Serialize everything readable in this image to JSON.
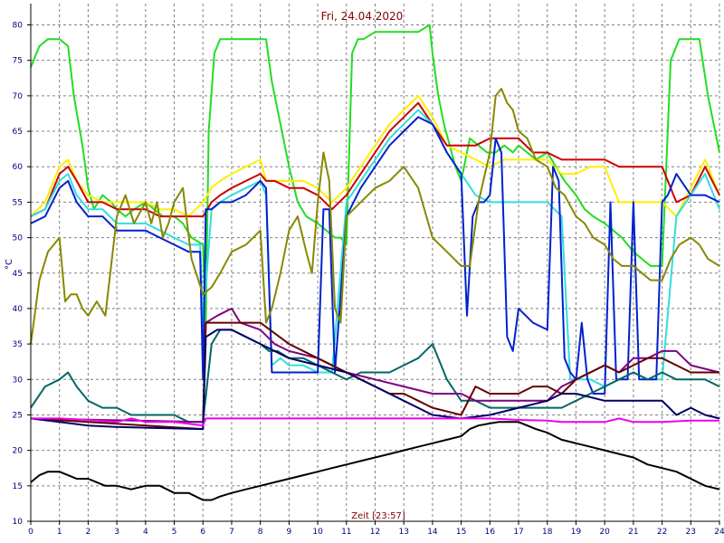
{
  "chart_data": {
    "type": "line",
    "title": "Fri, 24.04.2020",
    "xlabel": "Zeit [23:57]",
    "ylabel": "°C",
    "xlim": [
      0,
      24
    ],
    "ylim": [
      10,
      83
    ],
    "xticks": [
      0,
      1,
      2,
      3,
      4,
      5,
      6,
      7,
      8,
      9,
      10,
      11,
      12,
      13,
      14,
      15,
      16,
      17,
      18,
      19,
      20,
      21,
      22,
      23,
      24
    ],
    "yticks": [
      10,
      15,
      20,
      25,
      30,
      35,
      40,
      45,
      50,
      55,
      60,
      65,
      70,
      75,
      80
    ],
    "grid": true,
    "legend": "none",
    "colors": {
      "grid": "#808080",
      "axis": "#000000",
      "tick_text": "#000080",
      "title_text": "#800000"
    },
    "series": [
      {
        "color": "#22dd22",
        "x": [
          0,
          0.3,
          0.6,
          1,
          1.3,
          1.5,
          1.8,
          2,
          2.2,
          2.5,
          2.8,
          3,
          3.3,
          3.6,
          4,
          4.3,
          4.6,
          5,
          5.3,
          5.6,
          6,
          6.1,
          6.2,
          6.4,
          6.6,
          7,
          7.5,
          8,
          8.2,
          8.4,
          8.7,
          9,
          9.3,
          9.6,
          10,
          10.3,
          10.6,
          10.8,
          11,
          11.2,
          11.4,
          11.6,
          12,
          12.5,
          13,
          13.5,
          13.9,
          14,
          14.2,
          14.4,
          14.6,
          14.8,
          15,
          15.3,
          15.6,
          15.9,
          16.2,
          16.5,
          16.8,
          17,
          17.3,
          17.6,
          18,
          18.3,
          18.6,
          19,
          19.3,
          19.6,
          20,
          20.3,
          20.6,
          21,
          21.3,
          21.6,
          22,
          22.3,
          22.6,
          23,
          23.3,
          23.6,
          24
        ],
        "y": [
          74,
          77,
          78,
          78,
          77,
          70,
          63,
          57,
          54,
          56,
          55,
          54,
          53,
          54,
          55,
          54,
          53,
          53,
          52,
          50,
          49,
          38,
          65,
          76,
          78,
          78,
          78,
          78,
          78,
          72,
          66,
          60,
          55,
          53,
          52,
          51,
          50,
          50,
          49,
          76,
          78,
          78,
          79,
          79,
          79,
          79,
          80,
          76,
          70,
          66,
          63,
          60,
          58,
          64,
          63,
          62,
          62,
          63,
          62,
          63,
          62,
          61,
          62,
          60,
          58,
          56,
          54,
          53,
          52,
          51,
          50,
          48,
          47,
          46,
          46,
          75,
          78,
          78,
          78,
          70,
          62
        ]
      },
      {
        "color": "#ffee00",
        "x": [
          0,
          0.5,
          1,
          1.3,
          1.6,
          2,
          2.5,
          3,
          3.5,
          4,
          4.5,
          5,
          5.5,
          6,
          6.3,
          6.6,
          7,
          7.5,
          8,
          8.2,
          8.5,
          9,
          9.5,
          10,
          10.5,
          11,
          11.5,
          12,
          12.5,
          13,
          13.5,
          14,
          14.5,
          15,
          15.5,
          16,
          16.5,
          17,
          17.5,
          18,
          18.5,
          19,
          19.5,
          20,
          20.5,
          21,
          21.5,
          22,
          22.5,
          23,
          23.5,
          24
        ],
        "y": [
          53,
          55,
          60,
          61,
          58,
          56,
          55,
          55,
          55,
          55,
          54,
          54,
          53,
          55,
          57,
          58,
          59,
          60,
          61,
          58,
          58,
          58,
          58,
          57,
          55,
          57,
          60,
          63,
          66,
          68,
          70,
          67,
          63,
          62,
          61,
          60,
          61,
          61,
          61,
          61,
          59,
          59,
          60,
          60,
          55,
          55,
          55,
          55,
          53,
          57,
          61,
          56
        ]
      },
      {
        "color": "#cc0000",
        "x": [
          0,
          0.5,
          1,
          1.3,
          1.6,
          2,
          2.5,
          3,
          3.5,
          4,
          4.5,
          5,
          5.5,
          6,
          6.3,
          6.6,
          7,
          7.5,
          8,
          8.2,
          8.5,
          9,
          9.5,
          10,
          10.5,
          11,
          11.5,
          12,
          12.5,
          13,
          13.5,
          14,
          14.5,
          15,
          15.5,
          16,
          16.5,
          17,
          17.5,
          18,
          18.5,
          19,
          19.5,
          20,
          20.5,
          21,
          21.5,
          22,
          22.5,
          23,
          23.5,
          24
        ],
        "y": [
          53,
          54,
          59,
          60,
          58,
          55,
          55,
          54,
          54,
          54,
          53,
          53,
          53,
          53,
          55,
          56,
          57,
          58,
          59,
          58,
          58,
          57,
          57,
          56,
          54,
          56,
          59,
          62,
          65,
          67,
          69,
          66,
          63,
          63,
          63,
          64,
          64,
          64,
          62,
          62,
          61,
          61,
          61,
          61,
          60,
          60,
          60,
          60,
          55,
          56,
          60,
          56
        ]
      },
      {
        "color": "#33dddd",
        "x": [
          0,
          0.5,
          1,
          1.3,
          1.6,
          2,
          2.5,
          3,
          3.5,
          4,
          4.5,
          5,
          5.5,
          5.9,
          6,
          6.3,
          6.6,
          7,
          7.5,
          8,
          8.2,
          8.4,
          8.7,
          9,
          9.5,
          10,
          10.5,
          11,
          11.5,
          12,
          12.5,
          13,
          13.5,
          14,
          14.5,
          15,
          15.5,
          16,
          16.5,
          17,
          17.5,
          18,
          18.5,
          18.8,
          19,
          19.5,
          20,
          20.5,
          21,
          21.5,
          22,
          22.5,
          23,
          23.5,
          24
        ],
        "y": [
          53,
          54,
          58,
          59,
          56,
          54,
          54,
          52,
          52,
          52,
          51,
          50,
          49,
          49,
          38,
          54,
          55,
          56,
          57,
          58,
          56,
          32,
          33,
          32,
          32,
          31,
          31,
          55,
          58,
          61,
          64,
          66,
          68,
          66,
          62,
          59,
          56,
          55,
          55,
          55,
          55,
          55,
          53,
          30,
          30,
          30,
          29,
          30,
          31,
          30,
          30,
          53,
          56,
          59,
          54
        ]
      },
      {
        "color": "#0022cc",
        "x": [
          0,
          0.5,
          1,
          1.3,
          1.6,
          2,
          2.5,
          3,
          3.5,
          4,
          4.5,
          5,
          5.5,
          5.9,
          6,
          6.1,
          6.3,
          6.6,
          7,
          7.5,
          8,
          8.2,
          8.4,
          8.7,
          9,
          9.5,
          10,
          10.2,
          10.4,
          10.6,
          11,
          11.5,
          12,
          12.5,
          13,
          13.5,
          14,
          14.5,
          15,
          15.2,
          15.4,
          15.6,
          15.8,
          16,
          16.2,
          16.4,
          16.6,
          16.8,
          17,
          17.5,
          18,
          18.2,
          18.4,
          18.6,
          18.8,
          19,
          19.2,
          19.4,
          19.6,
          19.8,
          20,
          20.2,
          20.4,
          20.6,
          20.8,
          21,
          21.2,
          21.4,
          21.6,
          21.8,
          22,
          22.2,
          22.5,
          23,
          23.5,
          24
        ],
        "y": [
          52,
          53,
          57,
          58,
          55,
          53,
          53,
          51,
          51,
          51,
          50,
          49,
          48,
          48,
          30,
          54,
          54,
          55,
          55,
          56,
          58,
          57,
          31,
          31,
          31,
          31,
          31,
          54,
          54,
          31,
          53,
          57,
          60,
          63,
          65,
          67,
          66,
          62,
          59,
          39,
          53,
          55,
          55,
          56,
          64,
          62,
          36,
          34,
          40,
          38,
          37,
          60,
          58,
          33,
          31,
          30,
          38,
          30,
          28,
          28,
          28,
          55,
          30,
          30,
          30,
          55,
          30,
          30,
          30,
          30,
          55,
          56,
          59,
          56,
          56,
          55
        ]
      },
      {
        "color": "#888800",
        "x": [
          0,
          0.3,
          0.6,
          1,
          1.2,
          1.4,
          1.6,
          1.8,
          2,
          2.3,
          2.6,
          3,
          3.3,
          3.6,
          4,
          4.2,
          4.4,
          4.6,
          4.8,
          5,
          5.3,
          5.6,
          6,
          6.3,
          6.6,
          7,
          7.5,
          8,
          8.2,
          8.4,
          8.7,
          9,
          9.3,
          9.6,
          9.8,
          10,
          10.2,
          10.4,
          10.6,
          10.8,
          11,
          11.5,
          12,
          12.5,
          13,
          13.5,
          14,
          14.5,
          15,
          15.3,
          15.6,
          16,
          16.2,
          16.4,
          16.6,
          16.8,
          17,
          17.3,
          17.6,
          18,
          18.3,
          18.6,
          19,
          19.3,
          19.6,
          20,
          20.3,
          20.6,
          21,
          21.3,
          21.6,
          22,
          22.3,
          22.6,
          23,
          23.3,
          23.6,
          24
        ],
        "y": [
          35,
          44,
          48,
          50,
          41,
          42,
          42,
          40,
          39,
          41,
          39,
          53,
          56,
          52,
          55,
          52,
          55,
          50,
          52,
          55,
          57,
          47,
          42,
          43,
          45,
          48,
          49,
          51,
          38,
          40,
          45,
          51,
          53,
          48,
          45,
          55,
          62,
          58,
          40,
          38,
          53,
          55,
          57,
          58,
          60,
          57,
          50,
          48,
          46,
          46,
          55,
          62,
          70,
          71,
          69,
          68,
          65,
          64,
          61,
          60,
          57,
          56,
          53,
          52,
          50,
          49,
          47,
          46,
          46,
          45,
          44,
          44,
          47,
          49,
          50,
          49,
          47,
          46
        ]
      },
      {
        "color": "#006666",
        "x": [
          0,
          0.5,
          1,
          1.3,
          1.6,
          2,
          2.5,
          3,
          3.5,
          4,
          4.5,
          5,
          5.5,
          6,
          6.3,
          6.6,
          7,
          7.5,
          8,
          8.3,
          8.6,
          9,
          9.5,
          10,
          10.5,
          11,
          11.5,
          12,
          12.5,
          13,
          13.5,
          14,
          14.5,
          15,
          15.5,
          16,
          16.5,
          17,
          17.5,
          18,
          18.5,
          19,
          19.5,
          20,
          20.5,
          21,
          21.5,
          22,
          22.5,
          23,
          23.5,
          24
        ],
        "y": [
          26,
          29,
          30,
          31,
          29,
          27,
          26,
          26,
          25,
          25,
          25,
          25,
          24,
          24,
          35,
          37,
          37,
          36,
          35,
          34,
          34,
          33,
          33,
          32,
          31,
          30,
          31,
          31,
          31,
          32,
          33,
          35,
          30,
          27,
          27,
          26,
          26,
          26,
          26,
          26,
          26,
          27,
          28,
          29,
          30,
          31,
          30,
          31,
          30,
          30,
          30,
          29
        ]
      },
      {
        "color": "#800080",
        "x": [
          0,
          6,
          6.1,
          6.5,
          7,
          7.3,
          8,
          8.5,
          9,
          10,
          11,
          12,
          13,
          14,
          15,
          15.5,
          16,
          17,
          18,
          18.5,
          19,
          19.5,
          20,
          20.5,
          21,
          21.5,
          22,
          22.5,
          23,
          24
        ],
        "y": [
          24.5,
          24,
          38,
          39,
          40,
          38,
          37,
          35,
          34,
          33,
          31,
          30,
          29,
          28,
          28,
          27,
          27,
          27,
          27,
          29,
          30,
          31,
          32,
          31,
          33,
          33,
          34,
          34,
          32,
          31
        ]
      },
      {
        "color": "#660000",
        "x": [
          0,
          6,
          6.1,
          7,
          8,
          9,
          10,
          11,
          11.5,
          12,
          12.5,
          13,
          13.5,
          14,
          15,
          15.5,
          16,
          17,
          17.5,
          18,
          18.5,
          19,
          19.5,
          20,
          20.5,
          21,
          21.5,
          22,
          22.5,
          23,
          24
        ],
        "y": [
          24.5,
          23,
          38,
          38,
          38,
          35,
          33,
          31,
          30,
          29,
          28,
          28,
          27,
          26,
          25,
          29,
          28,
          28,
          29,
          29,
          28,
          30,
          31,
          32,
          31,
          32,
          33,
          33,
          32,
          31,
          31
        ]
      },
      {
        "color": "#000066",
        "x": [
          0,
          1,
          2,
          3,
          4,
          5,
          6,
          6.1,
          6.5,
          7,
          8,
          9,
          10,
          11,
          12,
          13,
          14,
          15,
          16,
          17,
          18,
          18.5,
          19,
          20,
          21,
          22,
          22.5,
          23,
          23.5,
          24
        ],
        "y": [
          24.5,
          24,
          23.5,
          23.3,
          23.2,
          23.1,
          23,
          36,
          37,
          37,
          35,
          33,
          32,
          31,
          29,
          27,
          25,
          24.5,
          25,
          26,
          27,
          28,
          28,
          27,
          27,
          27,
          25,
          26,
          25,
          24.5
        ]
      },
      {
        "color": "#ee00ee",
        "x": [
          0,
          1,
          2,
          3,
          3.5,
          4,
          5,
          6,
          6.1,
          7,
          8,
          9,
          10,
          11,
          12,
          13,
          14,
          15,
          16,
          17,
          18,
          18.5,
          19,
          20,
          20.5,
          21,
          22,
          23,
          24
        ],
        "y": [
          24.5,
          24.5,
          24.3,
          24,
          24.5,
          24,
          24,
          23.5,
          24.5,
          24.5,
          24.5,
          24.5,
          24.5,
          24.5,
          24.5,
          24.5,
          24.5,
          24.5,
          24.5,
          24.3,
          24.2,
          24,
          24,
          24,
          24.5,
          24,
          24,
          24.2,
          24.2
        ]
      },
      {
        "color": "#000000",
        "x": [
          0,
          0.3,
          0.6,
          1,
          1.3,
          1.6,
          2,
          2.3,
          2.6,
          3,
          3.5,
          4,
          4.5,
          5,
          5.5,
          6,
          6.3,
          6.6,
          7,
          7.5,
          8,
          8.5,
          9,
          9.5,
          10,
          10.5,
          11,
          11.5,
          12,
          12.5,
          13,
          13.5,
          14,
          14.5,
          15,
          15.3,
          15.6,
          16,
          16.3,
          16.6,
          17,
          17.3,
          17.6,
          18,
          18.5,
          19,
          19.5,
          20,
          20.5,
          21,
          21.5,
          22,
          22.5,
          23,
          23.5,
          24
        ],
        "y": [
          15.5,
          16.5,
          17,
          17,
          16.5,
          16,
          16,
          15.5,
          15,
          15,
          14.5,
          15,
          15,
          14,
          14,
          13,
          13,
          13.5,
          14,
          14.5,
          15,
          15.5,
          16,
          16.5,
          17,
          17.5,
          18,
          18.5,
          19,
          19.5,
          20,
          20.5,
          21,
          21.5,
          22,
          23,
          23.5,
          23.8,
          24,
          24,
          24,
          23.5,
          23,
          22.5,
          21.5,
          21,
          20.5,
          20,
          19.5,
          19,
          18,
          17.5,
          17,
          16,
          15,
          14.5
        ]
      }
    ]
  }
}
